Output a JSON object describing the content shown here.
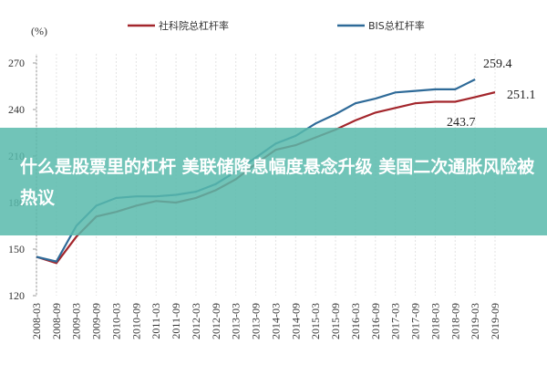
{
  "chart_data": {
    "type": "line",
    "y_unit": "(%)",
    "categories": [
      "2008-03",
      "2008-09",
      "2009-03",
      "2009-09",
      "2010-03",
      "2010-09",
      "2011-03",
      "2011-09",
      "2012-03",
      "2012-09",
      "2013-03",
      "2013-09",
      "2014-03",
      "2014-09",
      "2015-03",
      "2015-09",
      "2016-03",
      "2016-09",
      "2017-03",
      "2017-09",
      "2018-03",
      "2018-09",
      "2019-03",
      "2019-09"
    ],
    "series": [
      {
        "name": "社科院总杠杆率",
        "color": "#a3262c",
        "values": [
          145,
          141,
          158,
          171,
          174,
          178,
          181,
          180,
          183,
          188,
          195,
          205,
          214,
          217,
          222,
          227,
          233,
          238,
          241,
          244,
          245,
          245,
          248,
          251.1
        ]
      },
      {
        "name": "BIS总杠杆率",
        "color": "#2e6a98",
        "values": [
          145,
          142,
          165,
          178,
          183,
          184,
          184,
          185,
          187,
          192,
          200,
          209,
          218,
          223,
          231,
          237,
          244,
          247,
          251,
          252,
          253,
          253,
          259.4,
          null
        ]
      }
    ],
    "annotations": [
      "259.4",
      "251.1",
      "243.7"
    ],
    "ylim": [
      120,
      270
    ],
    "yticks": [
      120,
      150,
      180,
      210,
      240,
      270
    ],
    "grid": true
  },
  "banner": "什么是股票里的杠杆 美联储降息幅度悬念升级 美国二次通胀风险被热议"
}
